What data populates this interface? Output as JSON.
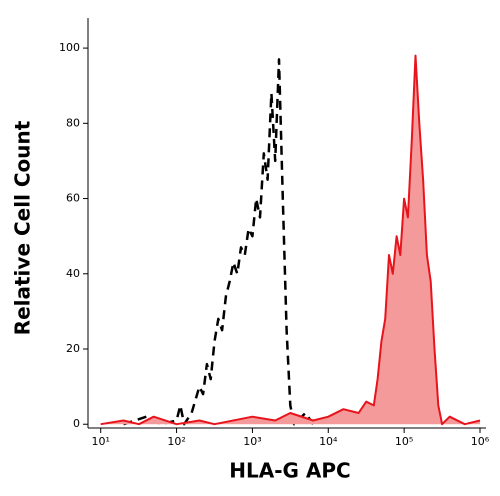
{
  "chart_data": {
    "type": "histogram-overlay",
    "xlabel": "HLA-G APC",
    "ylabel": "Relative Cell Count",
    "xscale": "log",
    "xlim": [
      6.8,
      1200000
    ],
    "xticks": [
      {
        "value": 10,
        "label": "10¹"
      },
      {
        "value": 100,
        "label": "10²"
      },
      {
        "value": 1000,
        "label": "10³"
      },
      {
        "value": 10000,
        "label": "10⁴"
      },
      {
        "value": 100000,
        "label": "10⁵"
      },
      {
        "value": 1000000,
        "label": "10⁶"
      }
    ],
    "ylim": [
      -1,
      108
    ],
    "yticks": [
      0,
      20,
      40,
      60,
      80,
      100
    ],
    "series": [
      {
        "color": "#000000",
        "style": "dashed",
        "fill": false,
        "x": [
          20,
          40,
          63,
          100,
          112,
          126,
          158,
          200,
          224,
          251,
          282,
          316,
          355,
          398,
          447,
          501,
          562,
          631,
          708,
          794,
          891,
          1000,
          1122,
          1259,
          1413,
          1585,
          1778,
          1995,
          2239,
          2512,
          2818,
          3162,
          3548,
          5012,
          6310
        ],
        "values": [
          0,
          2,
          0,
          1,
          5,
          0,
          3,
          10,
          8,
          16,
          12,
          22,
          28,
          25,
          34,
          38,
          43,
          40,
          47,
          45,
          52,
          50,
          60,
          55,
          72,
          65,
          88,
          70,
          97,
          60,
          25,
          5,
          0,
          3,
          0
        ]
      },
      {
        "color": "#e8141c",
        "style": "solid",
        "fill": true,
        "fill_color": "#f59a9a",
        "x": [
          10,
          20,
          32,
          50,
          100,
          200,
          316,
          1000,
          1995,
          3162,
          6310,
          10000,
          15849,
          25119,
          31623,
          39811,
          44668,
          50119,
          56234,
          63096,
          70795,
          79433,
          89125,
          100000,
          112202,
          125893,
          141254,
          158489,
          177828,
          199526,
          223872,
          251189,
          281838,
          316228,
          398107,
          630957,
          1000000
        ],
        "values": [
          0,
          1,
          0,
          2,
          0,
          1,
          0,
          2,
          1,
          3,
          1,
          2,
          4,
          3,
          6,
          5,
          12,
          22,
          28,
          45,
          40,
          50,
          45,
          60,
          55,
          75,
          98,
          80,
          65,
          45,
          38,
          20,
          5,
          0,
          2,
          0,
          1
        ]
      }
    ]
  }
}
